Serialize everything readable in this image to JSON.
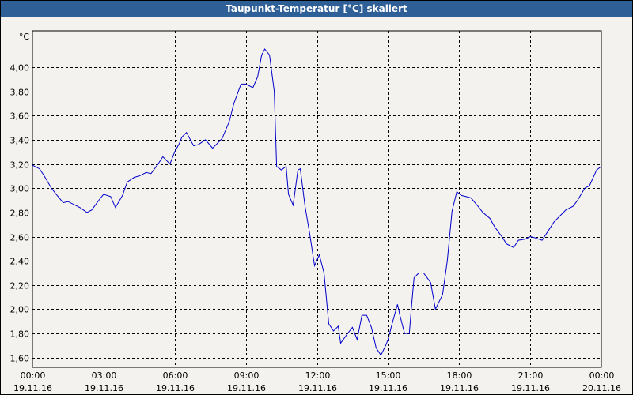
{
  "window": {
    "title": "Taupunkt-Temperatur [°C] skaliert"
  },
  "colors": {
    "line": "#0000cc",
    "titlebar": "#2e5f96",
    "plot_bg": "#f4f2ee"
  },
  "chart_data": {
    "type": "line",
    "title": "Taupunkt-Temperatur [°C] skaliert",
    "ylabel": "°C",
    "xlabel": "",
    "ylim": [
      1.52,
      4.3
    ],
    "y_ticks": [
      "1,60",
      "1,80",
      "2,00",
      "2,20",
      "2,40",
      "2,60",
      "2,80",
      "3,00",
      "3,20",
      "3,40",
      "3,60",
      "3,80",
      "4,00"
    ],
    "y_tick_values": [
      1.6,
      1.8,
      2.0,
      2.2,
      2.4,
      2.6,
      2.8,
      3.0,
      3.2,
      3.4,
      3.6,
      3.8,
      4.0
    ],
    "x_ticks": [
      {
        "time": "00:00",
        "date": "19.11.16"
      },
      {
        "time": "03:00",
        "date": "19.11.16"
      },
      {
        "time": "06:00",
        "date": "19.11.16"
      },
      {
        "time": "09:00",
        "date": "19.11.16"
      },
      {
        "time": "12:00",
        "date": "19.11.16"
      },
      {
        "time": "15:00",
        "date": "19.11.16"
      },
      {
        "time": "18:00",
        "date": "19.11.16"
      },
      {
        "time": "21:00",
        "date": "19.11.16"
      },
      {
        "time": "00:00",
        "date": "20.11.16"
      }
    ],
    "grid": true,
    "series": [
      {
        "x_unit": "hours from 19.11.16 00:00",
        "x": [
          0,
          0.3,
          0.5,
          0.8,
          1.0,
          1.3,
          1.5,
          2.0,
          2.3,
          2.5,
          2.8,
          3.0,
          3.3,
          3.5,
          3.8,
          4.0,
          4.3,
          4.5,
          4.8,
          5.0,
          5.3,
          5.5,
          5.8,
          6.0,
          6.2,
          6.3,
          6.5,
          6.8,
          7.0,
          7.3,
          7.6,
          8.0,
          8.3,
          8.5,
          8.8,
          9.0,
          9.3,
          9.5,
          9.67,
          9.8,
          10.0,
          10.2,
          10.3,
          10.5,
          10.7,
          10.8,
          11.0,
          11.2,
          11.3,
          11.5,
          11.7,
          11.9,
          12.1,
          12.3,
          12.5,
          12.7,
          12.9,
          13.0,
          13.3,
          13.5,
          13.7,
          13.9,
          14.1,
          14.3,
          14.5,
          14.7,
          14.9,
          15.0,
          15.2,
          15.4,
          15.5,
          15.7,
          15.9,
          16.0,
          16.1,
          16.3,
          16.5,
          16.8,
          17.0,
          17.3,
          17.5,
          17.7,
          17.9,
          18.1,
          18.3,
          18.5,
          18.8,
          19.0,
          19.3,
          19.5,
          19.8,
          20.0,
          20.3,
          20.5,
          20.8,
          21.0,
          21.2,
          21.5,
          21.8,
          22.0,
          22.3,
          22.5,
          22.8,
          23.0,
          23.3,
          23.5,
          23.8,
          24.0
        ],
        "y": [
          3.19,
          3.16,
          3.1,
          3.0,
          2.95,
          2.88,
          2.89,
          2.84,
          2.8,
          2.82,
          2.9,
          2.95,
          2.93,
          2.84,
          2.94,
          3.05,
          3.09,
          3.1,
          3.13,
          3.12,
          3.2,
          3.26,
          3.2,
          3.3,
          3.37,
          3.42,
          3.46,
          3.35,
          3.36,
          3.4,
          3.33,
          3.41,
          3.55,
          3.7,
          3.86,
          3.86,
          3.83,
          3.92,
          4.1,
          4.15,
          4.1,
          3.8,
          3.18,
          3.15,
          3.18,
          2.95,
          2.86,
          3.15,
          3.16,
          2.85,
          2.62,
          2.36,
          2.45,
          2.3,
          1.88,
          1.82,
          1.86,
          1.72,
          1.8,
          1.85,
          1.75,
          1.95,
          1.95,
          1.85,
          1.68,
          1.62,
          1.7,
          1.75,
          1.9,
          2.04,
          1.95,
          1.8,
          1.8,
          2.04,
          2.26,
          2.3,
          2.3,
          2.22,
          2.0,
          2.12,
          2.4,
          2.81,
          2.97,
          2.94,
          2.93,
          2.92,
          2.85,
          2.8,
          2.75,
          2.68,
          2.6,
          2.54,
          2.51,
          2.57,
          2.58,
          2.6,
          2.59,
          2.57,
          2.66,
          2.72,
          2.78,
          2.82,
          2.85,
          2.9,
          3.0,
          3.02,
          3.15,
          3.18
        ]
      }
    ]
  }
}
